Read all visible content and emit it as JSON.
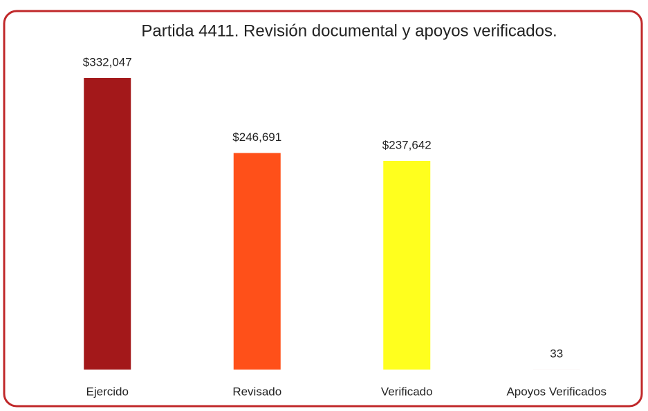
{
  "chart_data": {
    "type": "bar",
    "title": "Partida 4411. Revisión documental y apoyos verificados.",
    "categories": [
      "Ejercido",
      "Revisado",
      "Verificado",
      "Apoyos Verificados"
    ],
    "values": [
      332047,
      246691,
      237642,
      33
    ],
    "value_labels": [
      "$332,047",
      "$246,691",
      "$237,642",
      "33"
    ],
    "colors": [
      "#a3181a",
      "#ff5019",
      "#ffff1e",
      "#c0504d"
    ]
  }
}
